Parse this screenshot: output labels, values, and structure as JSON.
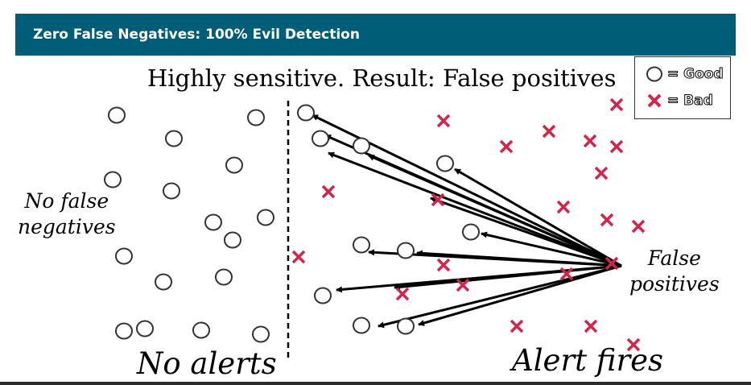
{
  "banner": {
    "title": "Zero False Negatives: 100% Evil Detection"
  },
  "subtitle": "Highly sensitive. Result: False positives",
  "legend": {
    "good_label": "= Good",
    "bad_label": "= Bad"
  },
  "labels": {
    "no_false_negatives_line1": "No false",
    "no_false_negatives_line2": "negatives",
    "false_positives_line1": "False",
    "false_positives_line2": "positives",
    "no_alerts": "No alerts",
    "alert_fires": "Alert fires"
  },
  "colors": {
    "banner": "#005d78",
    "bad_mark": "#d4244a",
    "good_mark": "#333333"
  },
  "icons": {
    "good": "circle-icon",
    "bad": "x-icon"
  }
}
